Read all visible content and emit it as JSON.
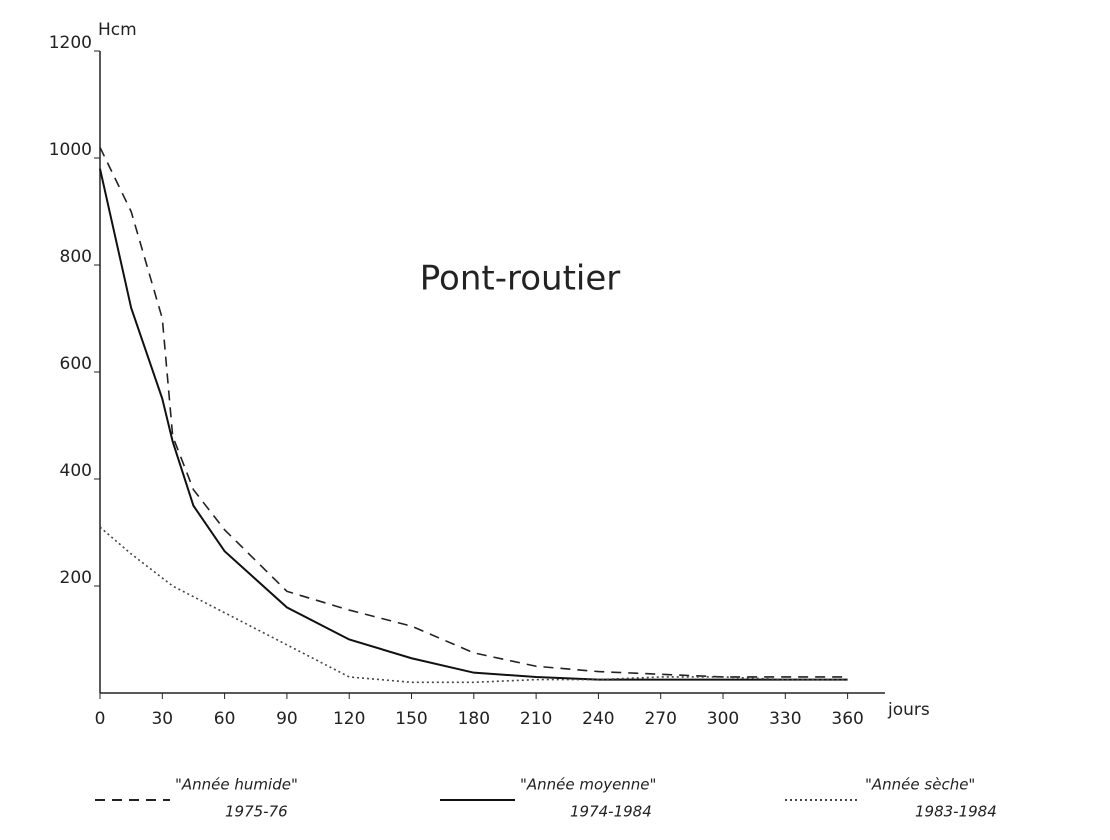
{
  "chart_data": {
    "type": "line",
    "title": "Pont-routier",
    "ylabel": "Hcm",
    "xlabel": "jours",
    "x": [
      0,
      15,
      30,
      35,
      45,
      60,
      90,
      120,
      150,
      180,
      210,
      240,
      270,
      300,
      330,
      360
    ],
    "series": [
      {
        "name": "\"Année humide\"",
        "period": "1975-76",
        "color": "#222",
        "dash": "10,7",
        "values": [
          1020,
          900,
          700,
          480,
          380,
          305,
          190,
          155,
          125,
          75,
          50,
          40,
          35,
          30,
          30,
          30
        ]
      },
      {
        "name": "\"Année moyenne\"",
        "period": "1974-1984",
        "color": "#111",
        "dash": "none",
        "values": [
          980,
          720,
          550,
          470,
          350,
          265,
          160,
          100,
          65,
          38,
          30,
          25,
          25,
          25,
          25,
          25
        ]
      },
      {
        "name": "\"Année sèche\"",
        "period": "1983-1984",
        "color": "#444",
        "dash": "2,3",
        "values": [
          310,
          260,
          215,
          200,
          180,
          150,
          90,
          30,
          20,
          20,
          25,
          25,
          30,
          30,
          25,
          25
        ]
      }
    ],
    "xlim": [
      0,
      378
    ],
    "ylim": [
      0,
      1200
    ],
    "xticks": [
      0,
      30,
      60,
      90,
      120,
      150,
      180,
      210,
      240,
      270,
      300,
      330,
      360
    ],
    "yticks": [
      200,
      400,
      600,
      800,
      1000,
      1200
    ]
  }
}
